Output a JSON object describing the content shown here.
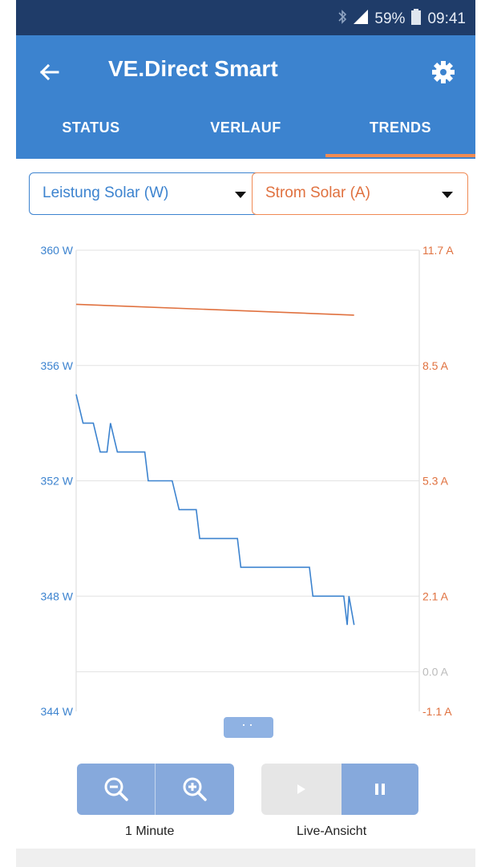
{
  "status_bar": {
    "battery": "59%",
    "time": "09:41",
    "icons": [
      "bluetooth-icon",
      "signal-icon",
      "battery-icon"
    ]
  },
  "app_bar": {
    "title": "VE.Direct Smart",
    "back_icon": "arrow-left-icon",
    "settings_icon": "gear-icon",
    "bg_color": "#3c83cf"
  },
  "tabs": [
    {
      "label": "STATUS",
      "active": false
    },
    {
      "label": "VERLAUF",
      "active": false
    },
    {
      "label": "TRENDS",
      "active": true
    }
  ],
  "selectors": {
    "left": {
      "value": "Leistung Solar (W)",
      "color": "#3c83cf"
    },
    "right": {
      "value": "Strom Solar (A)",
      "color": "#e0713f"
    }
  },
  "chart_data": {
    "type": "line",
    "left_axis": {
      "unit": "W",
      "ticks": [
        "360 W",
        "356 W",
        "352 W",
        "348 W",
        "344 W"
      ],
      "range": [
        344,
        360
      ]
    },
    "right_axis": {
      "unit": "A",
      "ticks": [
        "11.7 A",
        "8.5 A",
        "5.3 A",
        "2.1 A",
        "0.0 A",
        "-1.1 A"
      ],
      "range": [
        -1.1,
        11.7
      ]
    },
    "grid": true,
    "series": [
      {
        "axis": "left",
        "color": "#3c83cf",
        "x": [
          0,
          2,
          5,
          7,
          9,
          10,
          12,
          13,
          14,
          16,
          20,
          21,
          27,
          28,
          30,
          35,
          36,
          40,
          41,
          47,
          48,
          58,
          59,
          68,
          69,
          73,
          74,
          78,
          79,
          79.5,
          81
        ],
        "values": [
          355,
          354,
          354,
          353,
          353,
          354,
          353,
          353,
          353,
          353,
          353,
          352,
          352,
          352,
          351,
          351,
          350,
          350,
          350,
          350,
          349,
          349,
          349,
          349,
          348,
          348,
          348,
          348,
          347,
          348,
          347
        ]
      },
      {
        "axis": "right",
        "color": "#e0713f",
        "x": [
          0,
          81
        ],
        "values": [
          10.2,
          9.9
        ]
      }
    ]
  },
  "controls": {
    "zoom_label": "1 Minute",
    "live_label": "Live-Ansicht",
    "zoom_out_icon": "zoom-out-icon",
    "zoom_in_icon": "zoom-in-icon",
    "play_icon": "play-icon",
    "pause_icon": "pause-icon",
    "expand_icon": "more-dots-icon"
  }
}
